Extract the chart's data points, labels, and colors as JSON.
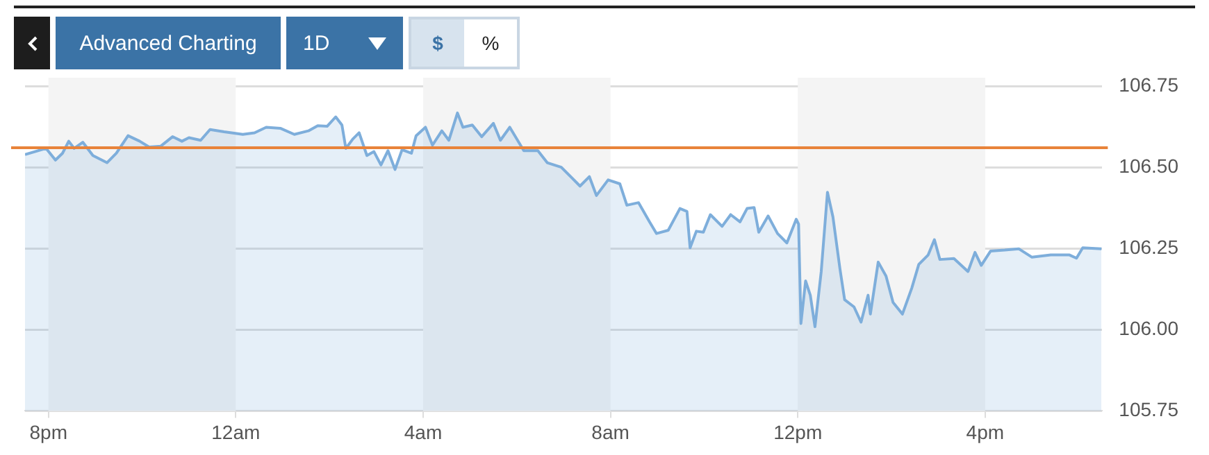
{
  "chart_data": {
    "type": "area",
    "annotations": [
      "Advanced Charting",
      "1D",
      "$",
      "%"
    ],
    "xlim": [
      "--01-01T19:30",
      "--01-02T18:30"
    ],
    "xticks": [
      {
        "value": "--01-01T20:00",
        "label": "8pm"
      },
      {
        "value": "--01-02T00:00",
        "label": "12am"
      },
      {
        "value": "--01-02T04:00",
        "label": "4am"
      },
      {
        "value": "--01-02T08:00",
        "label": "8am"
      },
      {
        "value": "--01-02T12:00",
        "label": "12pm"
      },
      {
        "value": "--01-02T16:00",
        "label": "4pm"
      }
    ],
    "ylim": [
      105.75,
      106.75
    ],
    "yticks": [
      {
        "value": 105.75,
        "label": "105.75"
      },
      {
        "value": 106,
        "label": "106.00"
      },
      {
        "value": 106.25,
        "label": "106.25"
      },
      {
        "value": 106.5,
        "label": "106.50"
      },
      {
        "value": 106.75,
        "label": "106.75"
      }
    ],
    "grid": "y",
    "legend": false,
    "marker": "none",
    "line_style": "solid",
    "ref_lines": [
      {
        "axis": "y",
        "value": 106.56,
        "color": "#e8833a"
      }
    ],
    "bands": [
      {
        "axis": "x",
        "from": "--01-01T20:00",
        "to": "--01-02T00:00",
        "color": "#f4f4f4"
      },
      {
        "axis": "x",
        "from": "--01-02T04:00",
        "to": "--01-02T08:00",
        "color": "#f4f4f4"
      },
      {
        "axis": "x",
        "from": "--01-02T12:00",
        "to": "--01-02T16:00",
        "color": "#f4f4f4"
      }
    ],
    "series": [
      {
        "color": "#7eaedb",
        "x": [
          "--01-01T19:30",
          "--01-01T19:57",
          "--01-01T20:09",
          "--01-01T20:18",
          "--01-01T20:26",
          "--01-01T20:33",
          "--01-01T20:44",
          "--01-01T20:57",
          "--01-01T21:15",
          "--01-01T21:27",
          "--01-01T21:42",
          "--01-01T21:57",
          "--01-01T22:09",
          "--01-01T22:24",
          "--01-01T22:39",
          "--01-01T22:51",
          "--01-01T23:00",
          "--01-01T23:15",
          "--01-01T23:27",
          "--01-01T23:45",
          "--01-02T00:09",
          "--01-02T00:24",
          "--01-02T00:39",
          "--01-02T00:57",
          "--01-02T01:15",
          "--01-02T01:33",
          "--01-02T01:45",
          "--01-02T01:57",
          "--01-02T02:08",
          "--01-02T02:16",
          "--01-02T02:21",
          "--01-02T02:30",
          "--01-02T02:38",
          "--01-02T02:48",
          "--01-02T02:57",
          "--01-02T03:06",
          "--01-02T03:15",
          "--01-02T03:24",
          "--01-02T03:33",
          "--01-02T03:45",
          "--01-02T03:51",
          "--01-02T04:03",
          "--01-02T04:12",
          "--01-02T04:24",
          "--01-02T04:33",
          "--01-02T04:44",
          "--01-02T04:51",
          "--01-02T05:03",
          "--01-02T05:15",
          "--01-02T05:30",
          "--01-02T05:39",
          "--01-02T05:51",
          "--01-02T06:09",
          "--01-02T06:27",
          "--01-02T06:39",
          "--01-02T06:57",
          "--01-02T07:09",
          "--01-02T07:21",
          "--01-02T07:33",
          "--01-02T07:42",
          "--01-02T07:57",
          "--01-02T08:12",
          "--01-02T08:21",
          "--01-02T08:36",
          "--01-02T08:50",
          "--01-02T08:59",
          "--01-02T09:14",
          "--01-02T09:29",
          "--01-02T09:38",
          "--01-02T09:42",
          "--01-02T09:50",
          "--01-02T09:59",
          "--01-02T10:08",
          "--01-02T10:23",
          "--01-02T10:34",
          "--01-02T10:46",
          "--01-02T10:55",
          "--01-02T11:04",
          "--01-02T11:10",
          "--01-02T11:22",
          "--01-02T11:34",
          "--01-02T11:46",
          "--01-02T11:58",
          "--01-02T12:01",
          "--01-02T12:04",
          "--01-02T12:10",
          "--01-02T12:16",
          "--01-02T12:22",
          "--01-02T12:30",
          "--01-02T12:38",
          "--01-02T12:45",
          "--01-02T12:54",
          "--01-02T13:00",
          "--01-02T13:12",
          "--01-02T13:21",
          "--01-02T13:30",
          "--01-02T13:33",
          "--01-02T13:43",
          "--01-02T13:53",
          "--01-02T14:02",
          "--01-02T14:14",
          "--01-02T14:26",
          "--01-02T14:35",
          "--01-02T14:47",
          "--01-02T14:55",
          "--01-02T15:02",
          "--01-02T15:20",
          "--01-02T15:38",
          "--01-02T15:47",
          "--01-02T15:55",
          "--01-02T16:07",
          "--01-02T16:25",
          "--01-02T16:43",
          "--01-02T17:00",
          "--01-02T17:24",
          "--01-02T17:48",
          "--01-02T17:57",
          "--01-02T18:05",
          "--01-02T18:29"
        ],
        "values": [
          106.539,
          106.558,
          106.522,
          106.543,
          106.58,
          106.558,
          106.577,
          106.536,
          106.514,
          106.543,
          106.597,
          106.58,
          106.562,
          106.565,
          106.594,
          106.58,
          106.591,
          106.583,
          106.616,
          106.609,
          106.601,
          106.606,
          106.623,
          106.62,
          106.601,
          106.612,
          106.628,
          106.626,
          106.655,
          106.63,
          106.558,
          106.587,
          106.606,
          106.536,
          106.548,
          106.507,
          106.551,
          106.493,
          106.554,
          106.543,
          106.597,
          106.623,
          106.568,
          106.612,
          106.583,
          106.667,
          106.623,
          106.63,
          106.594,
          106.635,
          106.583,
          106.623,
          106.551,
          106.551,
          106.514,
          106.5,
          106.471,
          106.442,
          106.471,
          106.413,
          106.461,
          106.449,
          106.383,
          106.391,
          106.332,
          106.296,
          106.306,
          106.373,
          106.364,
          106.252,
          106.303,
          106.3,
          106.354,
          106.318,
          106.354,
          106.332,
          106.373,
          106.376,
          106.3,
          106.35,
          106.296,
          106.267,
          106.34,
          106.325,
          106.019,
          106.15,
          106.106,
          106.009,
          106.179,
          106.423,
          106.347,
          106.187,
          106.092,
          106.07,
          106.023,
          106.106,
          106.048,
          106.208,
          106.165,
          106.084,
          106.048,
          106.128,
          106.201,
          106.23,
          106.277,
          106.216,
          106.219,
          106.179,
          106.238,
          106.198,
          106.242,
          106.245,
          106.249,
          106.223,
          106.23,
          106.23,
          106.22,
          106.252,
          106.249
        ]
      }
    ]
  }
}
